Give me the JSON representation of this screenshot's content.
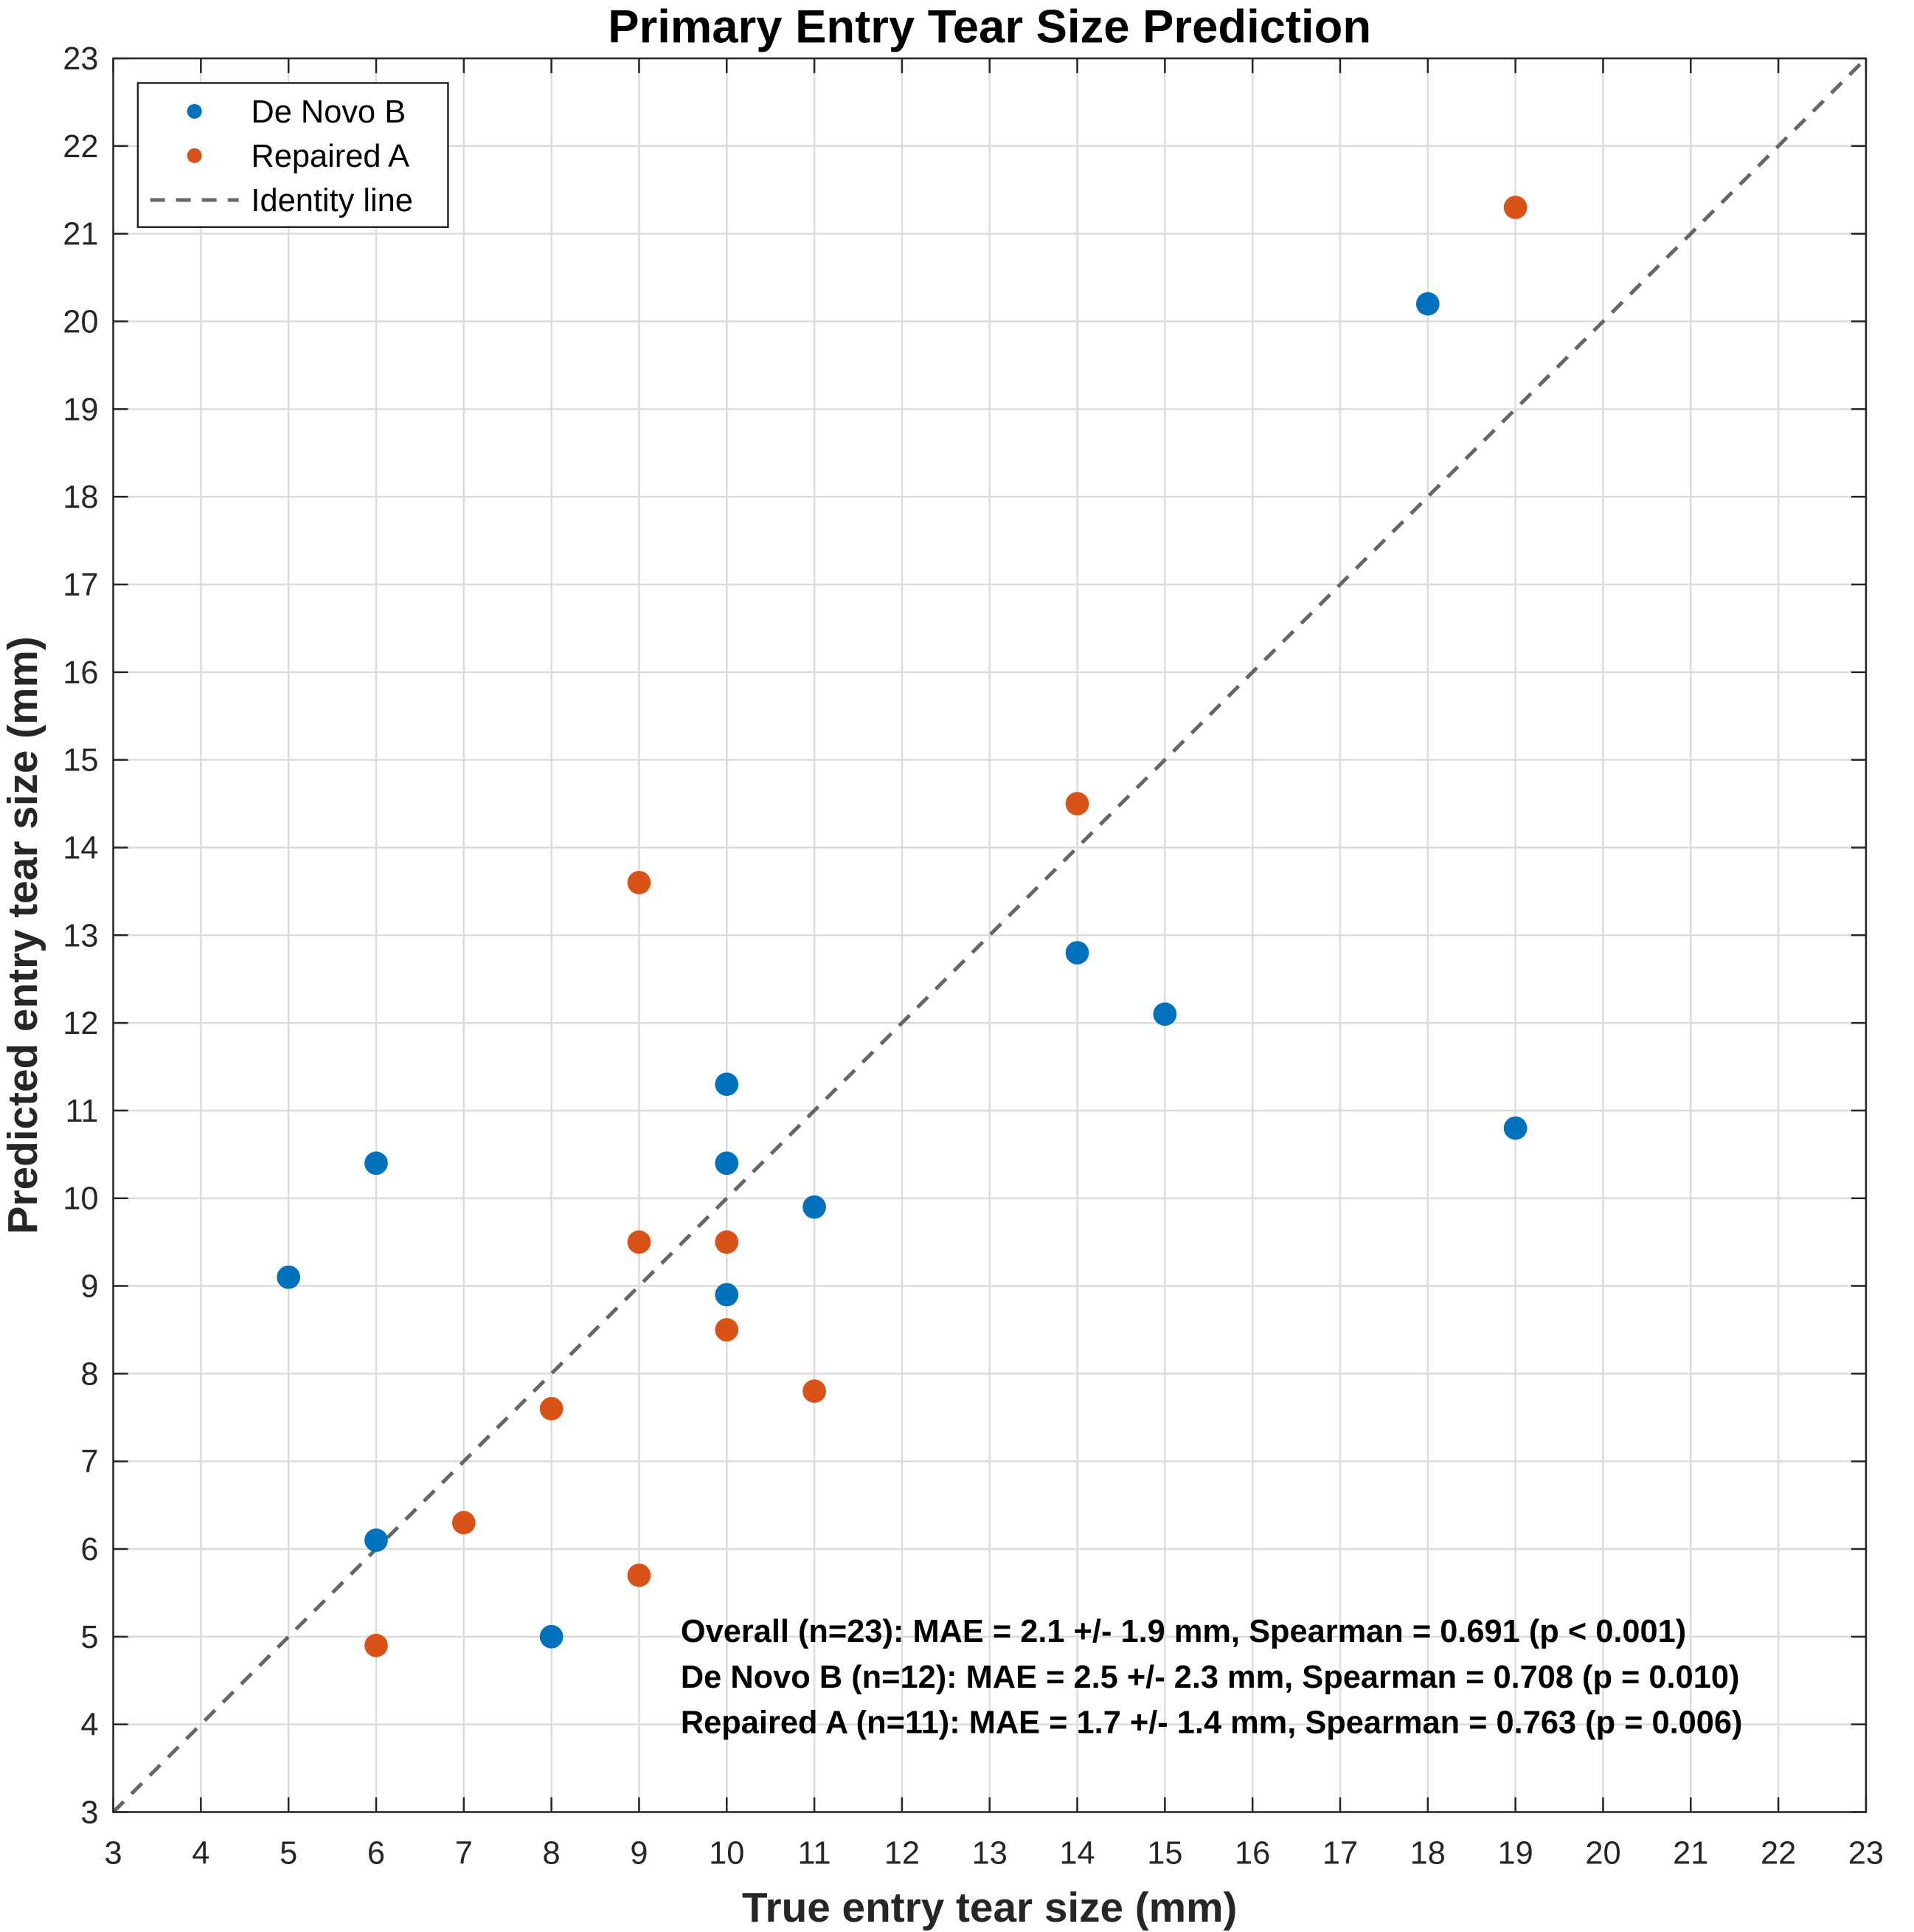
{
  "chart_data": {
    "type": "scatter",
    "title": "Primary Entry Tear Size Prediction",
    "xlabel": "True entry tear size (mm)",
    "ylabel": "Predicted entry tear size (mm)",
    "xlim": [
      3,
      23
    ],
    "ylim": [
      3,
      23
    ],
    "xticks": [
      3,
      4,
      5,
      6,
      7,
      8,
      9,
      10,
      11,
      12,
      13,
      14,
      15,
      16,
      17,
      18,
      19,
      20,
      21,
      22,
      23
    ],
    "yticks": [
      3,
      4,
      5,
      6,
      7,
      8,
      9,
      10,
      11,
      12,
      13,
      14,
      15,
      16,
      17,
      18,
      19,
      20,
      21,
      22,
      23
    ],
    "grid": true,
    "legend_position": "top-left",
    "series": [
      {
        "name": "De Novo B",
        "color": "#0072BD",
        "points": [
          [
            5,
            9.1
          ],
          [
            6,
            10.4
          ],
          [
            6,
            6.1
          ],
          [
            8,
            5.0
          ],
          [
            10,
            11.3
          ],
          [
            10,
            10.4
          ],
          [
            10,
            8.9
          ],
          [
            11,
            9.9
          ],
          [
            14,
            12.8
          ],
          [
            15,
            12.1
          ],
          [
            18,
            20.2
          ],
          [
            19,
            10.8
          ]
        ]
      },
      {
        "name": "Repaired A",
        "color": "#D95319",
        "points": [
          [
            6,
            4.9
          ],
          [
            7,
            6.3
          ],
          [
            8,
            7.6
          ],
          [
            9,
            13.6
          ],
          [
            9,
            9.5
          ],
          [
            9,
            5.7
          ],
          [
            10,
            9.5
          ],
          [
            10,
            8.5
          ],
          [
            11,
            7.8
          ],
          [
            14,
            14.5
          ],
          [
            19,
            21.3
          ]
        ]
      }
    ],
    "identity_line": {
      "name": "Identity line",
      "color": "#666666",
      "style": "dashed"
    },
    "annotations": [
      "Overall (n=23): MAE = 2.1 +/- 1.9 mm, Spearman = 0.691 (p < 0.001)",
      "De Novo B (n=12): MAE = 2.5 +/- 2.3 mm, Spearman = 0.708 (p = 0.010)",
      "Repaired A (n=11): MAE = 1.7 +/- 1.4 mm, Spearman = 0.763 (p = 0.006)"
    ]
  }
}
